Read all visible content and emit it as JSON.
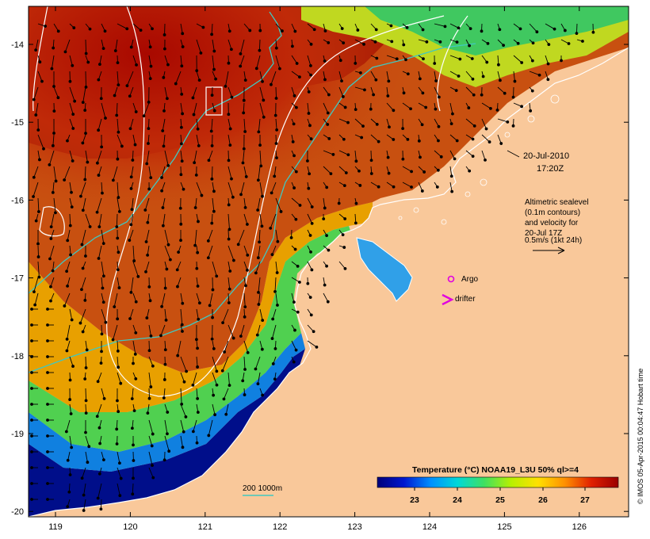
{
  "map": {
    "lon_ticks": [
      "119",
      "120",
      "121",
      "122",
      "123",
      "124",
      "125",
      "126"
    ],
    "lat_ticks": [
      "-14",
      "-15",
      "-16",
      "-17",
      "-18",
      "-19",
      "-20"
    ],
    "land_color": "#f9c89a",
    "frame_color": "#000000"
  },
  "annotation": {
    "date": "20-Jul-2010",
    "time": "17:20Z",
    "sealevel_lines": [
      "Altimetric sealevel",
      "(0.1m contours)",
      "and velocity for",
      "20-Jul 17Z",
      "0.5m/s (1kt 24h)"
    ]
  },
  "legend": {
    "argo_label": "Argo",
    "argo_color": "#e000e0",
    "drifter_label": "drifter",
    "drifter_color": "#e000e0"
  },
  "depth_legend": {
    "label": "200  1000m",
    "color": "#40c8c0"
  },
  "colorbar": {
    "title": "Temperature (°C) NOAA19_L3U 50% ql>=4",
    "ticks": [
      "23",
      "24",
      "25",
      "26",
      "27"
    ],
    "stops": [
      "#00007a",
      "#0018d0",
      "#0090ff",
      "#00d8d8",
      "#40e060",
      "#b8f000",
      "#ffe000",
      "#ff9000",
      "#e02000",
      "#9a0000"
    ]
  },
  "credit": "© IMOS 05-Apr-2015 00:04:47 Hobart time"
}
